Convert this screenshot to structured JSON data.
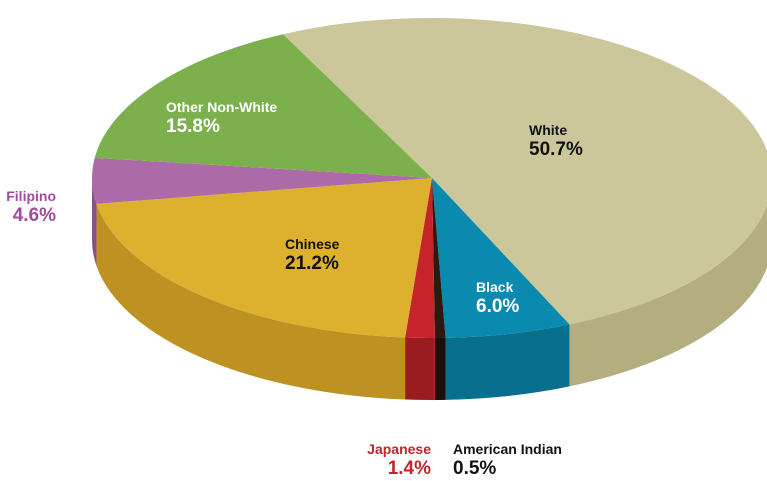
{
  "chart_data": {
    "type": "pie",
    "style": "3d",
    "title": "",
    "slices": [
      {
        "name": "White",
        "value": 50.7,
        "label": "50.7%",
        "color": "#cbc79a",
        "side": "#b3ad80",
        "label_color": "#111111",
        "label_placement": "inside"
      },
      {
        "name": "Black",
        "value": 6.0,
        "label": "6.0%",
        "color": "#0b8aaf",
        "side": "#086f8e",
        "label_color": "#ffffff",
        "label_placement": "inside"
      },
      {
        "name": "American Indian",
        "value": 0.5,
        "label": "0.5%",
        "color": "#2a1a12",
        "side": "#1a0f0a",
        "label_color": "#111111",
        "label_placement": "below"
      },
      {
        "name": "Japanese",
        "value": 1.4,
        "label": "1.4%",
        "color": "#c4242a",
        "side": "#9a1b20",
        "label_color": "#c0262c",
        "label_placement": "below"
      },
      {
        "name": "Chinese",
        "value": 21.2,
        "label": "21.2%",
        "color": "#ddb02e",
        "side": "#bd9223",
        "label_color": "#111111",
        "label_placement": "inside"
      },
      {
        "name": "Filipino",
        "value": 4.6,
        "label": "4.6%",
        "color": "#ad6aa8",
        "side": "#8c4f88",
        "label_color": "#a54a9e",
        "label_placement": "outside-left"
      },
      {
        "name": "Other Non-White",
        "value": 15.8,
        "label": "15.8%",
        "color": "#7bb04d",
        "side": "#5e8c37",
        "label_color": "#ffffff",
        "label_placement": "inside"
      }
    ]
  }
}
